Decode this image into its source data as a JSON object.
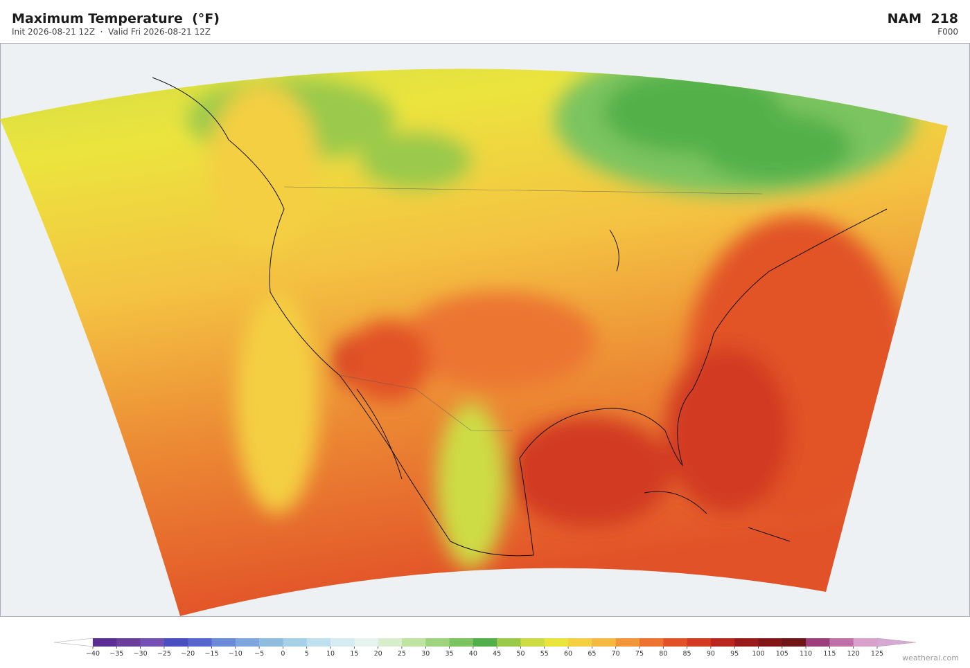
{
  "header": {
    "title": "Maximum Temperature  (°F)",
    "subtitle": "Init 2026-08-21 12Z  ·  Valid Fri 2026-08-21 12Z",
    "model": "NAM  218",
    "forecast_hour": "F000"
  },
  "colorbar": {
    "ticks": [
      {
        "value": -40,
        "label": "−40"
      },
      {
        "value": -35,
        "label": "−35"
      },
      {
        "value": -30,
        "label": "−30"
      },
      {
        "value": -25,
        "label": "−25"
      },
      {
        "value": -20,
        "label": "−20"
      },
      {
        "value": -15,
        "label": "−15"
      },
      {
        "value": -10,
        "label": "−10"
      },
      {
        "value": -5,
        "label": "−5"
      },
      0,
      5,
      10,
      15,
      20,
      25,
      30,
      35,
      40,
      45,
      50,
      55,
      60,
      65,
      70,
      75,
      80,
      85,
      90,
      95,
      100,
      105,
      110,
      115,
      120,
      125
    ],
    "colors": [
      "#5b2d91",
      "#6a3d9a",
      "#7450b0",
      "#4a4fbf",
      "#5566cc",
      "#6a8ad6",
      "#7ea6dc",
      "#8fbde2",
      "#a6d0e8",
      "#bfe0ee",
      "#d4ecf2",
      "#e6f3ee",
      "#d9eecd",
      "#bfe3a0",
      "#9fd47e",
      "#7cc461",
      "#52b04a",
      "#9ac94b",
      "#cddc44",
      "#ece43e",
      "#f4cf42",
      "#f4b940",
      "#f0973a",
      "#ec7430",
      "#e25228",
      "#d23a22",
      "#b8261e",
      "#981c1c",
      "#801818",
      "#6e1616",
      "#9a3f7a",
      "#c070a8",
      "#d9a0cc"
    ],
    "under_color": "#ffffff",
    "over_color": "#d8a8d4"
  },
  "footer": {
    "watermark": "weatherai.com"
  }
}
